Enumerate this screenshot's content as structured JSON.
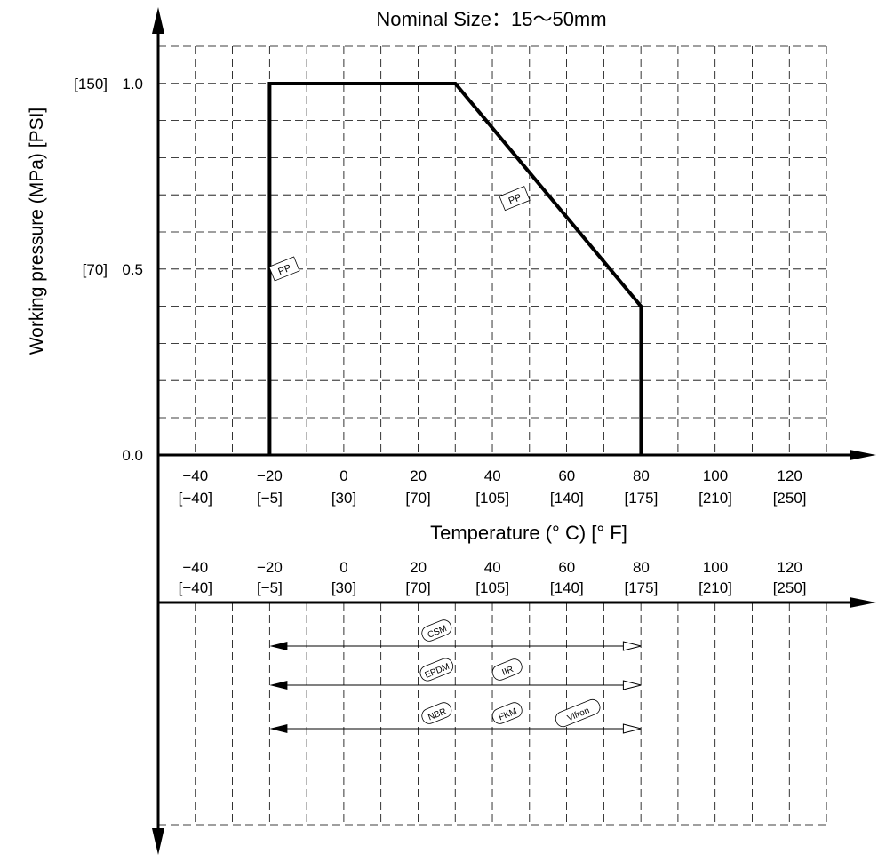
{
  "chart_data": {
    "type": "area",
    "title": "Nominal Size：15～50mm",
    "ylabel": "Working pressure (MPa) [PSI]",
    "xlabel": "Temperature (°  C) [°  F]",
    "xlim": [
      -55,
      135
    ],
    "ylim": [
      0,
      1.0
    ],
    "x_ticks": [
      {
        "c": "−40",
        "f": "[−40]"
      },
      {
        "c": "−20",
        "f": "[−5]"
      },
      {
        "c": "0",
        "f": "[30]"
      },
      {
        "c": "20",
        "f": "[70]"
      },
      {
        "c": "40",
        "f": "[105]"
      },
      {
        "c": "60",
        "f": "[140]"
      },
      {
        "c": "80",
        "f": "[175]"
      },
      {
        "c": "100",
        "f": "[210]"
      },
      {
        "c": "120",
        "f": "[250]"
      }
    ],
    "y_ticks": [
      {
        "value": 0.0,
        "label": "0.0",
        "psi": ""
      },
      {
        "value": 0.5,
        "label": "0.5",
        "psi": "[70]"
      },
      {
        "value": 1.0,
        "label": "1.0",
        "psi": "[150]"
      }
    ],
    "series": [
      {
        "name": "PP",
        "points": [
          [
            -20,
            0
          ],
          [
            -20,
            1.0
          ],
          [
            30,
            1.0
          ],
          [
            80,
            0.4
          ],
          [
            80,
            0
          ]
        ],
        "labels": [
          {
            "text": "PP",
            "x": -16,
            "y": 0.5
          },
          {
            "text": "PP",
            "x": 46,
            "y": 0.69
          }
        ]
      }
    ],
    "seal_ranges": [
      {
        "from": -20,
        "to": 80,
        "labels": [
          {
            "text": "CSM",
            "x": 25
          }
        ]
      },
      {
        "from": -20,
        "to": 80,
        "labels": [
          {
            "text": "EPDM",
            "x": 25
          },
          {
            "text": "IIR",
            "x": 44
          }
        ]
      },
      {
        "from": -20,
        "to": 80,
        "labels": [
          {
            "text": "NBR",
            "x": 25
          },
          {
            "text": "FKM",
            "x": 44
          },
          {
            "text": "Vifron",
            "x": 63
          }
        ]
      }
    ]
  }
}
